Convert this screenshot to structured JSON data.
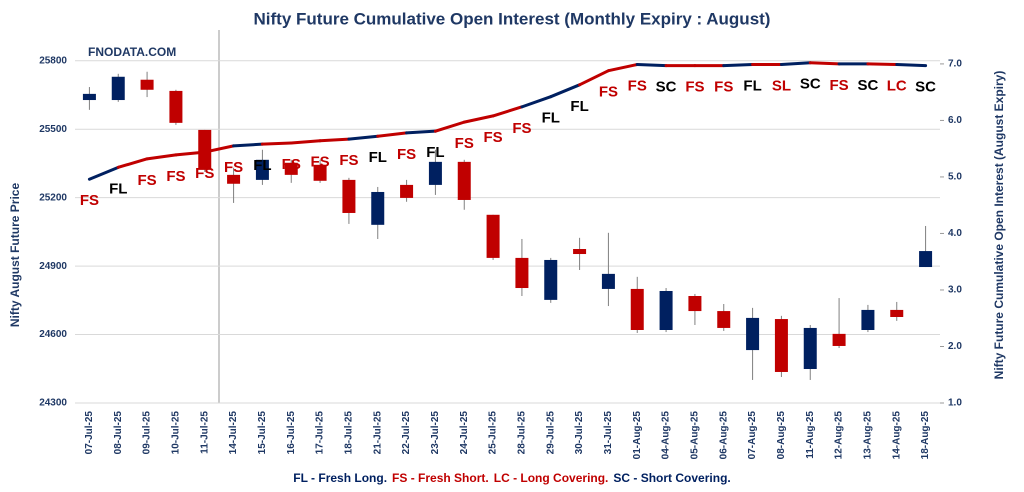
{
  "chart_data": {
    "type": "candlestick",
    "title": "Nifty Future Cumulative Open Interest (Monthly Expiry : August)",
    "watermark": "FNODATA.COM",
    "y_label": "Nifty August Future Price",
    "y2_label": "Nifty Future Cumulative Open Interest (August Expiry)",
    "categories": [
      "07-Jul-25",
      "08-Jul-25",
      "09-Jul-25",
      "10-Jul-25",
      "11-Jul-25",
      "14-Jul-25",
      "15-Jul-25",
      "16-Jul-25",
      "17-Jul-25",
      "18-Jul-25",
      "21-Jul-25",
      "22-Jul-25",
      "23-Jul-25",
      "24-Jul-25",
      "25-Jul-25",
      "28-Jul-25",
      "29-Jul-25",
      "30-Jul-25",
      "31-Jul-25",
      "01-Aug-25",
      "04-Aug-25",
      "05-Aug-25",
      "06-Aug-25",
      "07-Aug-25",
      "08-Aug-25",
      "11-Aug-25",
      "12-Aug-25",
      "13-Aug-25",
      "14-Aug-25",
      "18-Aug-25"
    ],
    "open": [
      25628,
      25628,
      25717,
      25668,
      25497,
      25300,
      25278,
      25353,
      25344,
      25278,
      25081,
      25256,
      25256,
      25357,
      25125,
      24936,
      24752,
      24975,
      24800,
      24800,
      24620,
      24769,
      24703,
      24532,
      24668,
      24449,
      24603,
      24620,
      24708,
      24896
    ],
    "high": [
      25685,
      25743,
      25752,
      25673,
      25497,
      25331,
      25410,
      25366,
      25366,
      25287,
      25247,
      25278,
      25410,
      25366,
      25125,
      25019,
      24936,
      25024,
      25046,
      24853,
      24804,
      24778,
      24734,
      24717,
      24682,
      24642,
      24760,
      24730,
      24743,
      25076
    ],
    "low": [
      25585,
      25620,
      25641,
      25519,
      25313,
      25177,
      25256,
      25265,
      25265,
      25085,
      25019,
      25182,
      25212,
      25147,
      24927,
      24769,
      24739,
      24883,
      24725,
      24607,
      24611,
      24642,
      24616,
      24401,
      24414,
      24401,
      24541,
      24611,
      24660,
      24896
    ],
    "close": [
      25655,
      25730,
      25673,
      25528,
      25322,
      25261,
      25366,
      25300,
      25274,
      25133,
      25225,
      25199,
      25357,
      25190,
      24936,
      24804,
      24927,
      24953,
      24866,
      24620,
      24791,
      24703,
      24629,
      24673,
      24436,
      24629,
      24550,
      24708,
      24677,
      24966
    ],
    "up_color": "#002060",
    "down_color": "#c00000",
    "oi_values": [
      4.96,
      5.17,
      5.32,
      5.39,
      5.44,
      5.55,
      5.58,
      5.6,
      5.64,
      5.67,
      5.72,
      5.78,
      5.81,
      5.97,
      6.08,
      6.24,
      6.42,
      6.63,
      6.88,
      6.99,
      6.97,
      6.97,
      6.97,
      6.99,
      6.99,
      7.02,
      7.0,
      7.0,
      6.99,
      6.97
    ],
    "annotations": [
      {
        "text": "FS",
        "color": "#c00000"
      },
      {
        "text": "FL",
        "color": "#000000"
      },
      {
        "text": "FS",
        "color": "#c00000"
      },
      {
        "text": "FS",
        "color": "#c00000"
      },
      {
        "text": "FS",
        "color": "#c00000"
      },
      {
        "text": "FS",
        "color": "#c00000"
      },
      {
        "text": "FL",
        "color": "#000000"
      },
      {
        "text": "FS",
        "color": "#c00000"
      },
      {
        "text": "FS",
        "color": "#c00000"
      },
      {
        "text": "FS",
        "color": "#c00000"
      },
      {
        "text": "FL",
        "color": "#000000"
      },
      {
        "text": "FS",
        "color": "#c00000"
      },
      {
        "text": "FL",
        "color": "#000000"
      },
      {
        "text": "FS",
        "color": "#c00000"
      },
      {
        "text": "FS",
        "color": "#c00000"
      },
      {
        "text": "FS",
        "color": "#c00000"
      },
      {
        "text": "FL",
        "color": "#000000"
      },
      {
        "text": "FL",
        "color": "#000000"
      },
      {
        "text": "FS",
        "color": "#c00000"
      },
      {
        "text": "FS",
        "color": "#c00000"
      },
      {
        "text": "SC",
        "color": "#000000"
      },
      {
        "text": "FS",
        "color": "#c00000"
      },
      {
        "text": "FS",
        "color": "#c00000"
      },
      {
        "text": "FL",
        "color": "#000000"
      },
      {
        "text": "SL",
        "color": "#c00000"
      },
      {
        "text": "SC",
        "color": "#000000"
      },
      {
        "text": "FS",
        "color": "#c00000"
      },
      {
        "text": "SC",
        "color": "#000000"
      },
      {
        "text": "LC",
        "color": "#c00000"
      },
      {
        "text": "SC",
        "color": "#000000"
      }
    ],
    "ylim": [
      24300,
      25935
    ],
    "yticks": [
      24300,
      24600,
      24900,
      25200,
      25500,
      25800
    ],
    "y2lim": [
      1.0,
      7.6
    ],
    "y2ticks": [
      {
        "value": 1,
        "label": "1.0"
      },
      {
        "value": 2,
        "label": "2.0"
      },
      {
        "value": 3,
        "label": "3.0"
      },
      {
        "value": 4,
        "label": "4.0"
      },
      {
        "value": 5,
        "label": "5.0"
      },
      {
        "value": 6,
        "label": "6.0"
      },
      {
        "value": 7,
        "label": "7.0"
      }
    ],
    "grid": true,
    "legend_parts": [
      {
        "text": "FL - Fresh Long.",
        "color": "#002060"
      },
      {
        "text": "FS - Fresh Short.",
        "color": "#c00000"
      },
      {
        "text": "LC - Long Covering.",
        "color": "#c00000"
      },
      {
        "text": "SC - Short Covering.",
        "color": "#002060"
      }
    ]
  }
}
